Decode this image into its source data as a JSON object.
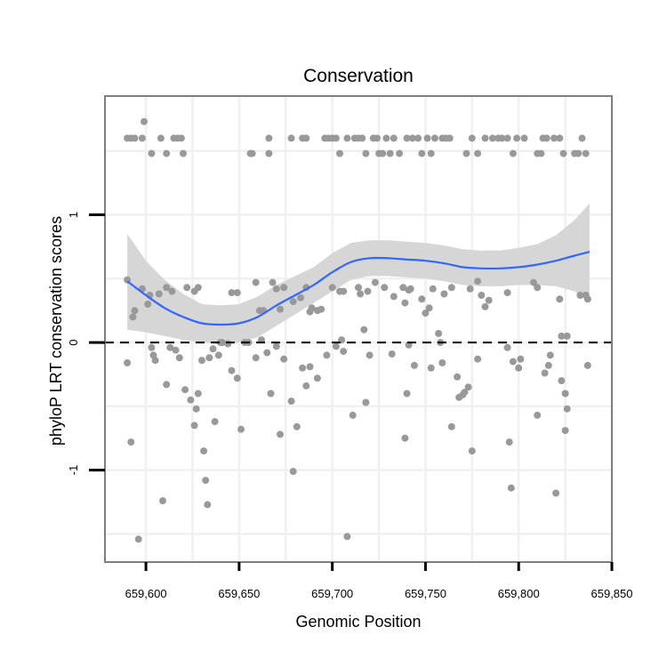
{
  "chart_data": {
    "type": "scatter",
    "title": "Conservation",
    "xlabel": "Genomic Position",
    "ylabel": "phyloP LRT conservation scores",
    "xlim": [
      659578,
      659850
    ],
    "ylim": [
      -1.72,
      1.93
    ],
    "x_ticks": [
      659600,
      659650,
      659700,
      659750,
      659800,
      659850
    ],
    "x_tick_labels": [
      "659,600",
      "659,650",
      "659,700",
      "659,750",
      "659,800",
      "659,850"
    ],
    "y_ticks": [
      -1,
      0,
      1
    ],
    "y_tick_labels": [
      "-1",
      "0",
      "1"
    ],
    "y_gridlines": [
      -1.5,
      -0.5,
      0.5,
      1.5
    ],
    "x_gridlines": [
      659625,
      659675,
      659725,
      659775,
      659825
    ],
    "grid": true,
    "reference_line": {
      "y": 0,
      "style": "dashed"
    },
    "colors": {
      "points": "#999999",
      "smooth": "#3366ff",
      "ribbon": "#d6d6d6",
      "grid": "#f0f0f0",
      "border": "#7f7f7f"
    },
    "series": [
      {
        "type": "points",
        "points": [
          [
            659590,
            1.6
          ],
          [
            659592,
            1.6
          ],
          [
            659594,
            1.6
          ],
          [
            659598,
            1.6
          ],
          [
            659599,
            1.73
          ],
          [
            659603,
            1.48
          ],
          [
            659608,
            1.6
          ],
          [
            659611,
            1.48
          ],
          [
            659615,
            1.6
          ],
          [
            659617,
            1.6
          ],
          [
            659619,
            1.6
          ],
          [
            659620,
            1.48
          ],
          [
            659656,
            1.48
          ],
          [
            659657,
            1.48
          ],
          [
            659666,
            1.6
          ],
          [
            659666,
            1.48
          ],
          [
            659678,
            1.6
          ],
          [
            659684,
            1.6
          ],
          [
            659686,
            1.6
          ],
          [
            659696,
            1.6
          ],
          [
            659698,
            1.6
          ],
          [
            659700,
            1.6
          ],
          [
            659702,
            1.6
          ],
          [
            659704,
            1.48
          ],
          [
            659708,
            1.6
          ],
          [
            659712,
            1.6
          ],
          [
            659714,
            1.6
          ],
          [
            659716,
            1.6
          ],
          [
            659718,
            1.48
          ],
          [
            659722,
            1.6
          ],
          [
            659724,
            1.6
          ],
          [
            659725,
            1.48
          ],
          [
            659727,
            1.48
          ],
          [
            659729,
            1.6
          ],
          [
            659731,
            1.48
          ],
          [
            659733,
            1.6
          ],
          [
            659736,
            1.48
          ],
          [
            659740,
            1.6
          ],
          [
            659743,
            1.6
          ],
          [
            659746,
            1.6
          ],
          [
            659748,
            1.48
          ],
          [
            659751,
            1.6
          ],
          [
            659753,
            1.48
          ],
          [
            659755,
            1.6
          ],
          [
            659759,
            1.6
          ],
          [
            659761,
            1.6
          ],
          [
            659763,
            1.6
          ],
          [
            659772,
            1.48
          ],
          [
            659775,
            1.6
          ],
          [
            659778,
            1.48
          ],
          [
            659782,
            1.6
          ],
          [
            659786,
            1.6
          ],
          [
            659789,
            1.6
          ],
          [
            659791,
            1.6
          ],
          [
            659794,
            1.6
          ],
          [
            659797,
            1.48
          ],
          [
            659799,
            1.6
          ],
          [
            659803,
            1.6
          ],
          [
            659810,
            1.48
          ],
          [
            659812,
            1.48
          ],
          [
            659813,
            1.6
          ],
          [
            659815,
            1.6
          ],
          [
            659819,
            1.6
          ],
          [
            659822,
            1.6
          ],
          [
            659824,
            1.48
          ],
          [
            659830,
            1.48
          ],
          [
            659832,
            1.48
          ],
          [
            659834,
            1.6
          ],
          [
            659836,
            1.48
          ],
          [
            659590,
            0.49
          ],
          [
            659593,
            0.2
          ],
          [
            659594,
            0.25
          ],
          [
            659598,
            0.42
          ],
          [
            659601,
            0.3
          ],
          [
            659602,
            0.37
          ],
          [
            659607,
            0.38
          ],
          [
            659611,
            0.43
          ],
          [
            659614,
            0.4
          ],
          [
            659622,
            0.43
          ],
          [
            659626,
            0.4
          ],
          [
            659628,
            0.43
          ],
          [
            659640,
            0.0
          ],
          [
            659641,
            0.0
          ],
          [
            659646,
            0.39
          ],
          [
            659649,
            0.39
          ],
          [
            659653,
            0.0
          ],
          [
            659659,
            0.47
          ],
          [
            659661,
            0.25
          ],
          [
            659663,
            0.25
          ],
          [
            659668,
            0.47
          ],
          [
            659670,
            0.42
          ],
          [
            659672,
            0.26
          ],
          [
            659674,
            0.43
          ],
          [
            659679,
            0.32
          ],
          [
            659683,
            0.35
          ],
          [
            659686,
            0.43
          ],
          [
            659688,
            0.24
          ],
          [
            659689,
            0.27
          ],
          [
            659692,
            0.25
          ],
          [
            659694,
            0.26
          ],
          [
            659700,
            0.43
          ],
          [
            659704,
            0.4
          ],
          [
            659706,
            0.4
          ],
          [
            659714,
            0.43
          ],
          [
            659715,
            0.38
          ],
          [
            659717,
            0.1
          ],
          [
            659719,
            0.4
          ],
          [
            659723,
            0.47
          ],
          [
            659728,
            0.43
          ],
          [
            659733,
            0.36
          ],
          [
            659738,
            0.43
          ],
          [
            659739,
            0.31
          ],
          [
            659741,
            0.41
          ],
          [
            659742,
            0.42
          ],
          [
            659748,
            0.34
          ],
          [
            659750,
            0.23
          ],
          [
            659752,
            0.27
          ],
          [
            659754,
            0.42
          ],
          [
            659757,
            0.07
          ],
          [
            659760,
            0.38
          ],
          [
            659764,
            0.43
          ],
          [
            659774,
            0.42
          ],
          [
            659778,
            0.48
          ],
          [
            659780,
            0.37
          ],
          [
            659782,
            0.28
          ],
          [
            659784,
            0.33
          ],
          [
            659794,
            0.39
          ],
          [
            659808,
            0.47
          ],
          [
            659810,
            0.43
          ],
          [
            659822,
            0.34
          ],
          [
            659833,
            0.37
          ],
          [
            659836,
            0.37
          ],
          [
            659837,
            0.34
          ],
          [
            659590,
            -0.16
          ],
          [
            659592,
            -0.78
          ],
          [
            659596,
            -1.54
          ],
          [
            659603,
            -0.04
          ],
          [
            659604,
            -0.1
          ],
          [
            659605,
            -0.14
          ],
          [
            659609,
            -1.24
          ],
          [
            659611,
            -0.33
          ],
          [
            659613,
            -0.04
          ],
          [
            659616,
            -0.06
          ],
          [
            659618,
            -0.12
          ],
          [
            659621,
            -0.37
          ],
          [
            659624,
            -0.45
          ],
          [
            659626,
            -0.65
          ],
          [
            659627,
            -0.52
          ],
          [
            659628,
            -0.4
          ],
          [
            659630,
            -0.14
          ],
          [
            659631,
            -0.85
          ],
          [
            659632,
            -1.08
          ],
          [
            659633,
            -1.27
          ],
          [
            659634,
            -0.12
          ],
          [
            659636,
            -0.05
          ],
          [
            659637,
            -0.62
          ],
          [
            659639,
            -0.1
          ],
          [
            659644,
            -0.01
          ],
          [
            659646,
            -0.22
          ],
          [
            659649,
            -0.28
          ],
          [
            659651,
            -0.68
          ],
          [
            659655,
            0.0
          ],
          [
            659659,
            -0.12
          ],
          [
            659662,
            0.02
          ],
          [
            659665,
            -0.08
          ],
          [
            659667,
            -0.4
          ],
          [
            659670,
            -0.03
          ],
          [
            659672,
            -0.72
          ],
          [
            659674,
            -0.13
          ],
          [
            659678,
            -0.46
          ],
          [
            659679,
            -1.01
          ],
          [
            659681,
            -0.66
          ],
          [
            659684,
            -0.2
          ],
          [
            659686,
            -0.34
          ],
          [
            659688,
            -0.19
          ],
          [
            659692,
            -0.28
          ],
          [
            659697,
            -0.1
          ],
          [
            659702,
            -0.03
          ],
          [
            659705,
            0.02
          ],
          [
            659706,
            -0.07
          ],
          [
            659708,
            -1.52
          ],
          [
            659711,
            -0.57
          ],
          [
            659718,
            -0.47
          ],
          [
            659720,
            -0.1
          ],
          [
            659732,
            -0.09
          ],
          [
            659739,
            -0.75
          ],
          [
            659740,
            -0.4
          ],
          [
            659741,
            -0.02
          ],
          [
            659744,
            -0.18
          ],
          [
            659753,
            -0.2
          ],
          [
            659758,
            0.0
          ],
          [
            659759,
            -0.16
          ],
          [
            659764,
            -0.66
          ],
          [
            659767,
            -0.27
          ],
          [
            659768,
            -0.43
          ],
          [
            659770,
            -0.41
          ],
          [
            659771,
            -0.39
          ],
          [
            659773,
            -0.35
          ],
          [
            659775,
            -0.85
          ],
          [
            659778,
            -0.13
          ],
          [
            659794,
            -0.04
          ],
          [
            659795,
            -0.78
          ],
          [
            659796,
            -1.14
          ],
          [
            659797,
            -0.15
          ],
          [
            659800,
            -0.2
          ],
          [
            659801,
            -0.13
          ],
          [
            659810,
            -0.57
          ],
          [
            659814,
            -0.24
          ],
          [
            659816,
            -0.18
          ],
          [
            659817,
            -0.1
          ],
          [
            659820,
            -1.18
          ],
          [
            659823,
            -0.3
          ],
          [
            659825,
            -0.4
          ],
          [
            659826,
            -0.52
          ],
          [
            659825,
            -0.69
          ],
          [
            659823,
            0.05
          ],
          [
            659826,
            0.05
          ],
          [
            659837,
            -0.18
          ]
        ]
      },
      {
        "type": "smooth",
        "points": [
          [
            659590,
            0.48
          ],
          [
            659600,
            0.37
          ],
          [
            659610,
            0.27
          ],
          [
            659620,
            0.2
          ],
          [
            659630,
            0.15
          ],
          [
            659640,
            0.14
          ],
          [
            659650,
            0.15
          ],
          [
            659660,
            0.2
          ],
          [
            659670,
            0.29
          ],
          [
            659680,
            0.37
          ],
          [
            659690,
            0.45
          ],
          [
            659700,
            0.55
          ],
          [
            659710,
            0.63
          ],
          [
            659720,
            0.66
          ],
          [
            659730,
            0.66
          ],
          [
            659740,
            0.65
          ],
          [
            659750,
            0.64
          ],
          [
            659760,
            0.62
          ],
          [
            659770,
            0.59
          ],
          [
            659780,
            0.58
          ],
          [
            659790,
            0.58
          ],
          [
            659800,
            0.59
          ],
          [
            659810,
            0.61
          ],
          [
            659820,
            0.64
          ],
          [
            659830,
            0.68
          ],
          [
            659838,
            0.71
          ]
        ],
        "ribbon": [
          [
            659590,
            0.1,
            0.85
          ],
          [
            659600,
            0.08,
            0.64
          ],
          [
            659610,
            0.05,
            0.49
          ],
          [
            659620,
            0.02,
            0.38
          ],
          [
            659630,
            0.0,
            0.3
          ],
          [
            659640,
            -0.01,
            0.29
          ],
          [
            659650,
            0.0,
            0.3
          ],
          [
            659660,
            0.04,
            0.36
          ],
          [
            659670,
            0.13,
            0.45
          ],
          [
            659680,
            0.22,
            0.52
          ],
          [
            659690,
            0.31,
            0.59
          ],
          [
            659700,
            0.4,
            0.7
          ],
          [
            659710,
            0.49,
            0.78
          ],
          [
            659720,
            0.52,
            0.8
          ],
          [
            659730,
            0.52,
            0.8
          ],
          [
            659740,
            0.51,
            0.79
          ],
          [
            659750,
            0.5,
            0.78
          ],
          [
            659760,
            0.48,
            0.76
          ],
          [
            659770,
            0.45,
            0.73
          ],
          [
            659780,
            0.44,
            0.72
          ],
          [
            659790,
            0.44,
            0.72
          ],
          [
            659800,
            0.45,
            0.74
          ],
          [
            659810,
            0.45,
            0.77
          ],
          [
            659820,
            0.44,
            0.84
          ],
          [
            659830,
            0.4,
            0.96
          ],
          [
            659838,
            0.33,
            1.09
          ]
        ]
      }
    ]
  }
}
